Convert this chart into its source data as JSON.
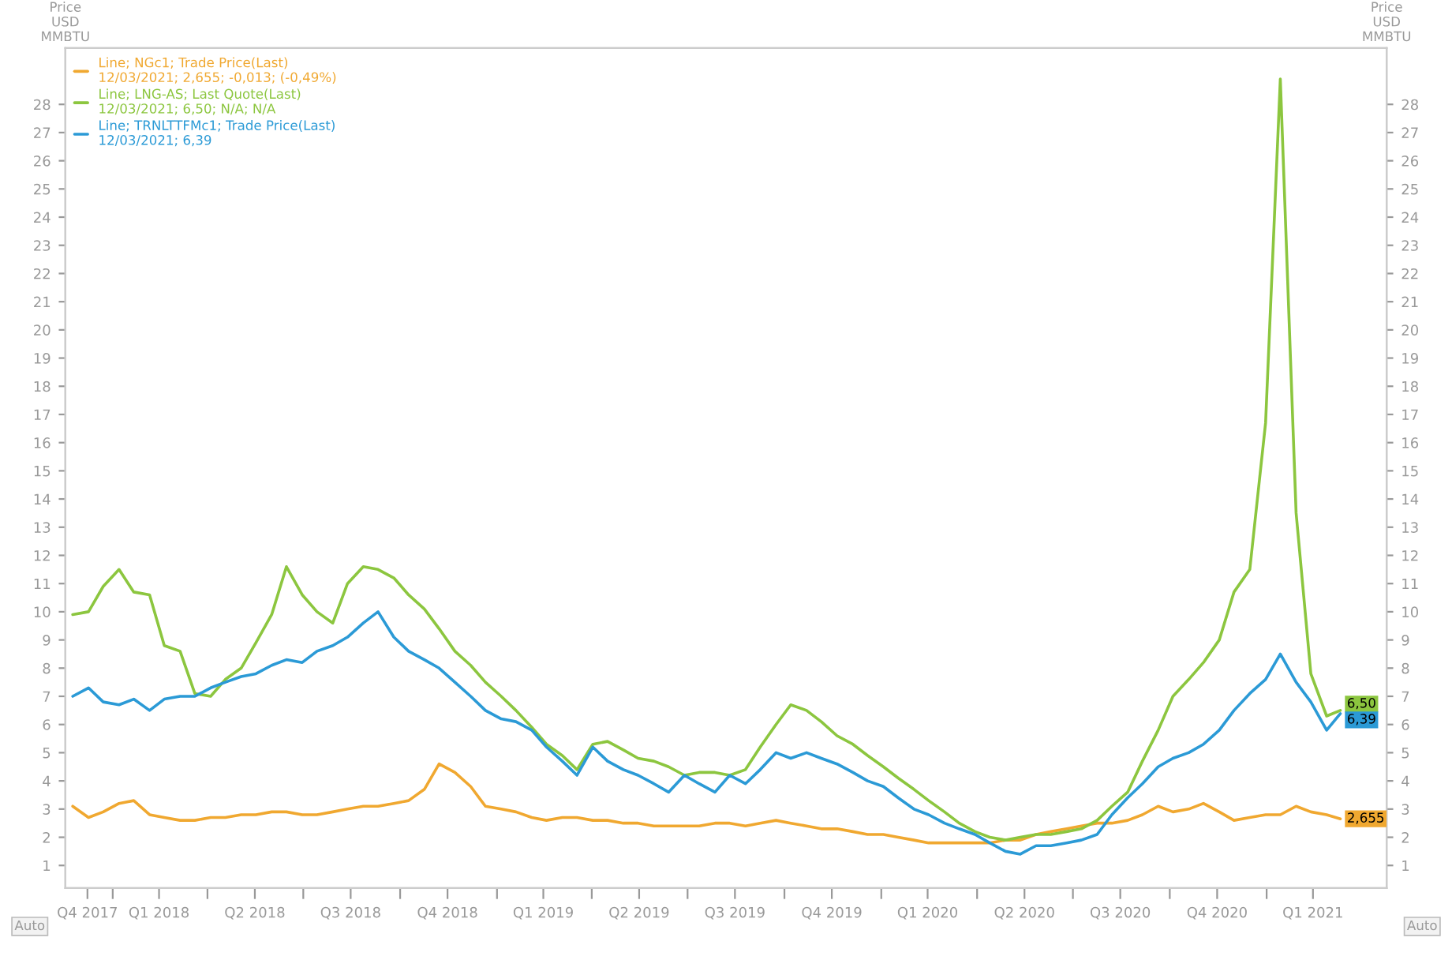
{
  "chart_data": {
    "type": "line",
    "ylabel": "Price\nUSD\nMMBTU",
    "y2label": "Price\nUSD\nMMBTU",
    "x": [
      "2017-11-24",
      "2017-12-09",
      "2017-12-23",
      "2018-01-07",
      "2018-01-21",
      "2018-02-05",
      "2018-02-19",
      "2018-03-06",
      "2018-03-20",
      "2018-04-04",
      "2018-04-18",
      "2018-05-03",
      "2018-05-17",
      "2018-06-01",
      "2018-06-15",
      "2018-06-30",
      "2018-07-14",
      "2018-07-29",
      "2018-08-12",
      "2018-08-27",
      "2018-09-10",
      "2018-09-25",
      "2018-10-09",
      "2018-10-24",
      "2018-11-07",
      "2018-11-22",
      "2018-12-07",
      "2018-12-21",
      "2019-01-05",
      "2019-01-19",
      "2019-02-03",
      "2019-02-17",
      "2019-03-04",
      "2019-03-18",
      "2019-04-02",
      "2019-04-16",
      "2019-05-01",
      "2019-05-15",
      "2019-05-30",
      "2019-06-13",
      "2019-06-28",
      "2019-07-12",
      "2019-07-27",
      "2019-08-10",
      "2019-08-25",
      "2019-09-08",
      "2019-09-23",
      "2019-10-07",
      "2019-10-22",
      "2019-11-05",
      "2019-11-20",
      "2019-12-05",
      "2019-12-19",
      "2020-01-03",
      "2020-01-17",
      "2020-02-01",
      "2020-02-15",
      "2020-03-01",
      "2020-03-15",
      "2020-03-30",
      "2020-04-13",
      "2020-04-28",
      "2020-05-12",
      "2020-05-27",
      "2020-06-10",
      "2020-06-25",
      "2020-07-09",
      "2020-07-24",
      "2020-08-07",
      "2020-08-22",
      "2020-09-05",
      "2020-09-20",
      "2020-10-04",
      "2020-10-19",
      "2020-11-02",
      "2020-11-17",
      "2020-12-01",
      "2020-12-16",
      "2020-12-31",
      "2021-01-14",
      "2021-01-29",
      "2021-02-12",
      "2021-02-27",
      "2021-03-12"
    ],
    "series": [
      {
        "name": "Line; NGc1; Trade Price(Last)\n12/03/2021; 2,655; -0,013; (-0,49%)",
        "color": "#f0a830",
        "values": [
          3.1,
          2.7,
          2.9,
          3.2,
          3.3,
          2.8,
          2.7,
          2.6,
          2.6,
          2.7,
          2.7,
          2.8,
          2.8,
          2.9,
          2.9,
          2.8,
          2.8,
          2.9,
          3.0,
          3.1,
          3.1,
          3.2,
          3.3,
          3.7,
          4.6,
          4.3,
          3.8,
          3.1,
          3.0,
          2.9,
          2.7,
          2.6,
          2.7,
          2.7,
          2.6,
          2.6,
          2.5,
          2.5,
          2.4,
          2.4,
          2.4,
          2.4,
          2.5,
          2.5,
          2.4,
          2.5,
          2.6,
          2.5,
          2.4,
          2.3,
          2.3,
          2.2,
          2.1,
          2.1,
          2.0,
          1.9,
          1.8,
          1.8,
          1.8,
          1.8,
          1.8,
          1.9,
          1.9,
          2.1,
          2.2,
          2.3,
          2.4,
          2.5,
          2.5,
          2.6,
          2.8,
          3.1,
          2.9,
          3.0,
          3.2,
          2.9,
          2.6,
          2.7,
          2.8,
          2.8,
          3.1,
          2.9,
          2.8,
          2.655
        ]
      },
      {
        "name": "Line; LNG-AS; Last Quote(Last)\n12/03/2021; 6,50; N/A; N/A",
        "color": "#8cc63f",
        "values": [
          9.9,
          10.0,
          10.9,
          11.5,
          10.7,
          10.6,
          8.8,
          8.6,
          7.1,
          7.0,
          7.6,
          8.0,
          8.9,
          9.9,
          11.6,
          10.6,
          10.0,
          9.6,
          11.0,
          11.6,
          11.5,
          11.2,
          10.6,
          10.1,
          9.4,
          8.6,
          8.1,
          7.5,
          7.0,
          6.5,
          5.9,
          5.3,
          4.9,
          4.4,
          5.3,
          5.4,
          5.1,
          4.8,
          4.7,
          4.5,
          4.2,
          4.3,
          4.3,
          4.2,
          4.4,
          5.2,
          6.0,
          6.7,
          6.5,
          6.1,
          5.6,
          5.3,
          4.9,
          4.5,
          4.1,
          3.7,
          3.3,
          2.9,
          2.5,
          2.2,
          2.0,
          1.9,
          2.0,
          2.1,
          2.1,
          2.2,
          2.3,
          2.6,
          3.1,
          3.6,
          4.7,
          5.8,
          7.0,
          7.6,
          8.2,
          9.0,
          10.7,
          11.5,
          16.7,
          28.9,
          13.5,
          7.8,
          6.3,
          6.5
        ]
      },
      {
        "name": "Line; TRNLTTFMc1; Trade Price(Last)\n12/03/2021; 6,39",
        "color": "#2b9ad6",
        "values": [
          7.0,
          7.3,
          6.8,
          6.7,
          6.9,
          6.5,
          6.9,
          7.0,
          7.0,
          7.3,
          7.5,
          7.7,
          7.8,
          8.1,
          8.3,
          8.2,
          8.6,
          8.8,
          9.1,
          9.6,
          10.0,
          9.1,
          8.6,
          8.3,
          8.0,
          7.5,
          7.0,
          6.5,
          6.2,
          6.1,
          5.8,
          5.2,
          4.7,
          4.2,
          5.2,
          4.7,
          4.4,
          4.2,
          3.9,
          3.6,
          4.2,
          3.9,
          3.6,
          4.2,
          3.9,
          4.4,
          5.0,
          4.8,
          5.0,
          4.8,
          4.6,
          4.3,
          4.0,
          3.8,
          3.4,
          3.0,
          2.8,
          2.5,
          2.3,
          2.1,
          1.8,
          1.5,
          1.4,
          1.7,
          1.7,
          1.8,
          1.9,
          2.1,
          2.8,
          3.4,
          3.9,
          4.5,
          4.8,
          5.0,
          5.3,
          5.8,
          6.5,
          7.1,
          7.6,
          8.5,
          7.5,
          6.8,
          5.8,
          6.39
        ]
      }
    ],
    "xlim": [
      "2017-11-17",
      "2021-04-25"
    ],
    "xticks": [
      {
        "value": "2017-12-08",
        "label": "Q4 2017"
      },
      {
        "value": "2018-01-01",
        "label": null
      },
      {
        "value": "2018-02-14",
        "label": "Q1 2018"
      },
      {
        "value": "2018-04-01",
        "label": null
      },
      {
        "value": "2018-05-16",
        "label": "Q2 2018"
      },
      {
        "value": "2018-07-01",
        "label": null
      },
      {
        "value": "2018-08-15",
        "label": "Q3 2018"
      },
      {
        "value": "2018-10-01",
        "label": null
      },
      {
        "value": "2018-11-15",
        "label": "Q4 2018"
      },
      {
        "value": "2019-01-01",
        "label": null
      },
      {
        "value": "2019-02-14",
        "label": "Q1 2019"
      },
      {
        "value": "2019-04-01",
        "label": null
      },
      {
        "value": "2019-05-16",
        "label": "Q2 2019"
      },
      {
        "value": "2019-07-01",
        "label": null
      },
      {
        "value": "2019-08-15",
        "label": "Q3 2019"
      },
      {
        "value": "2019-10-01",
        "label": null
      },
      {
        "value": "2019-11-15",
        "label": "Q4 2019"
      },
      {
        "value": "2020-01-01",
        "label": null
      },
      {
        "value": "2020-02-14",
        "label": "Q1 2020"
      },
      {
        "value": "2020-04-01",
        "label": null
      },
      {
        "value": "2020-05-16",
        "label": "Q2 2020"
      },
      {
        "value": "2020-07-01",
        "label": null
      },
      {
        "value": "2020-08-15",
        "label": "Q3 2020"
      },
      {
        "value": "2020-10-01",
        "label": null
      },
      {
        "value": "2020-11-15",
        "label": "Q4 2020"
      },
      {
        "value": "2021-01-01",
        "label": null
      },
      {
        "value": "2021-02-14",
        "label": "Q1 2021"
      }
    ],
    "ylim": [
      0.2,
      30
    ],
    "yticks": [
      1,
      2,
      3,
      4,
      5,
      6,
      7,
      8,
      9,
      10,
      11,
      12,
      13,
      14,
      15,
      16,
      17,
      18,
      19,
      20,
      21,
      22,
      23,
      24,
      25,
      26,
      27,
      28
    ],
    "y2lim": [
      0.2,
      30
    ],
    "y2ticks": [
      1,
      2,
      3,
      4,
      5,
      6,
      7,
      8,
      9,
      10,
      11,
      12,
      13,
      14,
      15,
      16,
      17,
      18,
      19,
      20,
      21,
      22,
      23,
      24,
      25,
      26,
      27,
      28
    ],
    "annotations": [
      "Auto",
      "Auto",
      {
        "text": "6,50",
        "x": "2021-03-12",
        "y": 6.5
      },
      {
        "text": "6,39",
        "x": "2021-03-12",
        "y": 6.39
      },
      {
        "text": "2,655",
        "x": "2021-03-12",
        "y": 2.655
      }
    ],
    "legend": "top left",
    "grid": false,
    "line_style": "solid",
    "marker": "none"
  }
}
